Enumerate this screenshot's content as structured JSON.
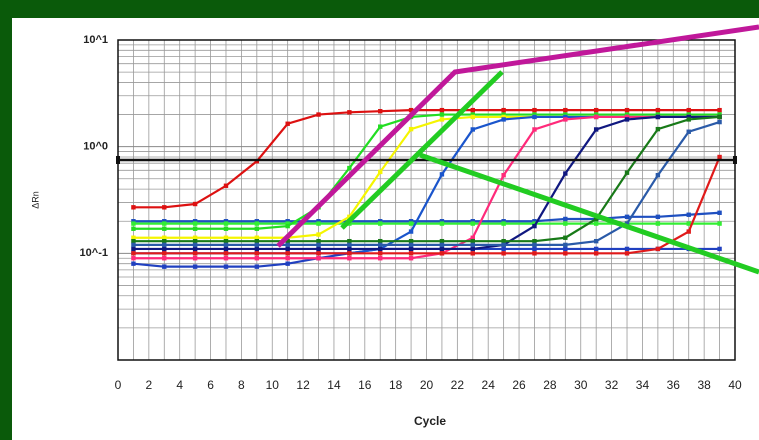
{
  "chart_data": {
    "type": "line",
    "x_label": "Cycle",
    "y_label": "ΔRn",
    "log_y": true,
    "grid": true,
    "xlim": [
      0,
      40
    ],
    "ylim": [
      0.01,
      10
    ],
    "xticks": [
      0,
      2,
      4,
      6,
      8,
      10,
      12,
      14,
      16,
      18,
      20,
      22,
      24,
      26,
      28,
      30,
      32,
      34,
      36,
      38,
      40
    ],
    "minor_xticks": [
      1,
      3,
      5,
      7,
      9,
      11,
      13,
      15,
      17,
      19,
      21,
      23,
      25,
      27,
      29,
      31,
      33,
      35,
      37,
      39
    ],
    "yticks": [
      {
        "value": 10,
        "label": "10^1"
      },
      {
        "value": 1,
        "label": "10^0"
      },
      {
        "value": 0.1,
        "label": "10^-1"
      }
    ],
    "minor_yticks": [
      0.02,
      0.03,
      0.04,
      0.05,
      0.06,
      0.07,
      0.08,
      0.09,
      0.2,
      0.3,
      0.4,
      0.5,
      0.6,
      0.7,
      0.8,
      0.9,
      2,
      3,
      4,
      5,
      6,
      7,
      8,
      9
    ],
    "threshold": 0.75,
    "threshold_color": "#111111",
    "x": [
      1,
      3,
      5,
      7,
      9,
      11,
      13,
      15,
      17,
      19,
      21,
      23,
      25,
      27,
      29,
      31,
      33,
      35,
      37,
      39
    ],
    "series": [
      {
        "color": "#1e4fc0",
        "values": [
          0.2,
          0.2,
          0.2,
          0.2,
          0.2,
          0.2,
          0.2,
          0.2,
          0.2,
          0.2,
          0.2,
          0.2,
          0.2,
          0.2,
          0.21,
          0.21,
          0.22,
          0.22,
          0.23,
          0.24
        ]
      },
      {
        "color": "#33ee33",
        "values": [
          0.19,
          0.19,
          0.19,
          0.19,
          0.19,
          0.19,
          0.19,
          0.19,
          0.19,
          0.19,
          0.19,
          0.19,
          0.19,
          0.19,
          0.19,
          0.19,
          0.19,
          0.19,
          0.19,
          0.19
        ]
      },
      {
        "color": "#2040c0",
        "values": [
          0.08,
          0.075,
          0.075,
          0.075,
          0.075,
          0.08,
          0.09,
          0.1,
          0.11,
          0.11,
          0.11,
          0.11,
          0.11,
          0.11,
          0.11,
          0.11,
          0.11,
          0.11,
          0.11,
          0.11
        ]
      },
      {
        "color": "#dd1111",
        "values": [
          0.27,
          0.27,
          0.29,
          0.43,
          0.73,
          1.64,
          2.0,
          2.1,
          2.15,
          2.2,
          2.2,
          2.2,
          2.2,
          2.2,
          2.2,
          2.2,
          2.2,
          2.2,
          2.2,
          2.2
        ]
      },
      {
        "color": "#22dd22",
        "values": [
          0.17,
          0.17,
          0.17,
          0.17,
          0.17,
          0.18,
          0.27,
          0.63,
          1.54,
          1.9,
          2.0,
          2.0,
          2.0,
          2.0,
          2.0,
          2.0,
          2.0,
          2.0,
          2.0,
          2.0
        ]
      },
      {
        "color": "#f5f500",
        "values": [
          0.14,
          0.14,
          0.14,
          0.14,
          0.14,
          0.14,
          0.15,
          0.22,
          0.58,
          1.46,
          1.8,
          1.9,
          1.9,
          1.9,
          1.9,
          1.9,
          1.9,
          1.9,
          1.9,
          1.9
        ]
      },
      {
        "color": "#1a55cc",
        "values": [
          0.1,
          0.1,
          0.1,
          0.1,
          0.1,
          0.1,
          0.1,
          0.1,
          0.11,
          0.16,
          0.55,
          1.45,
          1.8,
          1.9,
          1.9,
          1.9,
          1.9,
          1.9,
          1.9,
          1.9
        ]
      },
      {
        "color": "#ff2a7a",
        "values": [
          0.09,
          0.09,
          0.09,
          0.09,
          0.09,
          0.09,
          0.09,
          0.09,
          0.09,
          0.09,
          0.1,
          0.14,
          0.54,
          1.45,
          1.8,
          1.9,
          1.9,
          1.9,
          1.9,
          1.9
        ]
      },
      {
        "color": "#101880",
        "values": [
          0.11,
          0.11,
          0.11,
          0.11,
          0.11,
          0.11,
          0.11,
          0.11,
          0.11,
          0.11,
          0.11,
          0.11,
          0.12,
          0.18,
          0.56,
          1.45,
          1.8,
          1.9,
          1.9,
          1.9
        ]
      },
      {
        "color": "#187a18",
        "values": [
          0.13,
          0.13,
          0.13,
          0.13,
          0.13,
          0.13,
          0.13,
          0.13,
          0.13,
          0.13,
          0.13,
          0.13,
          0.13,
          0.13,
          0.14,
          0.21,
          0.57,
          1.46,
          1.8,
          1.9
        ]
      },
      {
        "color": "#2a5aa8",
        "values": [
          0.12,
          0.12,
          0.12,
          0.12,
          0.12,
          0.12,
          0.12,
          0.12,
          0.12,
          0.12,
          0.12,
          0.12,
          0.12,
          0.12,
          0.12,
          0.13,
          0.19,
          0.54,
          1.38,
          1.7
        ]
      },
      {
        "color": "#e01a1a",
        "values": [
          0.1,
          0.1,
          0.1,
          0.1,
          0.1,
          0.1,
          0.1,
          0.1,
          0.1,
          0.1,
          0.1,
          0.1,
          0.1,
          0.1,
          0.1,
          0.1,
          0.1,
          0.11,
          0.16,
          0.8
        ]
      }
    ]
  }
}
